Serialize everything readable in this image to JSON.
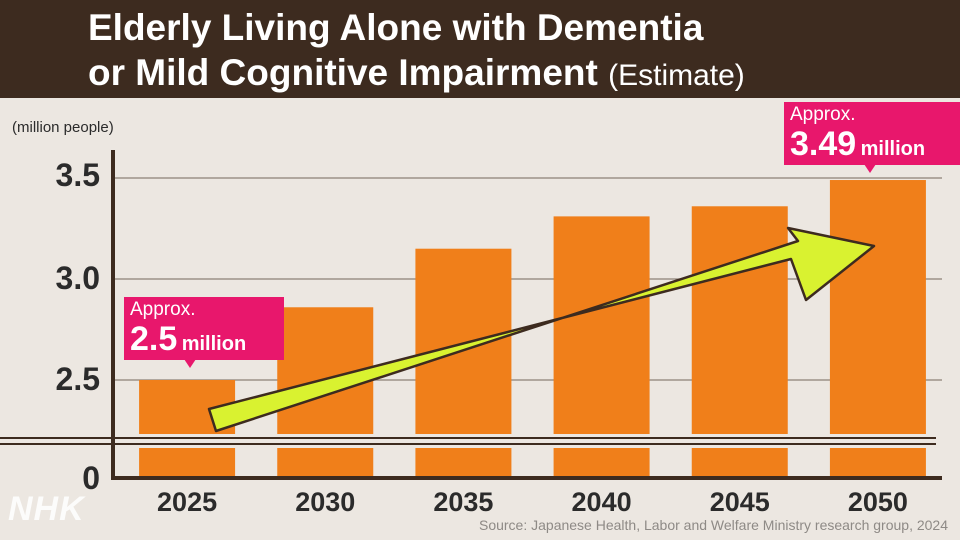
{
  "header": {
    "title_line_1": "Elderly Living Alone with Dementia",
    "title_line_2": "or Mild Cognitive Impairment",
    "title_suffix": "(Estimate)"
  },
  "unit_label": "(million people)",
  "callouts": {
    "first": {
      "approx": "Approx.",
      "value": "2.5",
      "unit": "million"
    },
    "last": {
      "approx": "Approx.",
      "value": "3.49",
      "unit": "million"
    }
  },
  "chart_data": {
    "type": "bar",
    "categories": [
      "2025",
      "2030",
      "2035",
      "2040",
      "2045",
      "2050"
    ],
    "values": [
      2.5,
      2.86,
      3.15,
      3.31,
      3.36,
      3.49
    ],
    "ylabel": "(million people)",
    "y_ticks": [
      "3.5",
      "3.0",
      "2.5",
      "0"
    ],
    "ylim": [
      2.0,
      3.6
    ],
    "axis_break": true,
    "grid": true,
    "colors": {
      "bar": "#f07f1a",
      "arrow": "#d9f230",
      "callout": "#e8176c"
    }
  },
  "logo": "NHK",
  "source": "Source: Japanese Health, Labor and Welfare Ministry research group, 2024"
}
